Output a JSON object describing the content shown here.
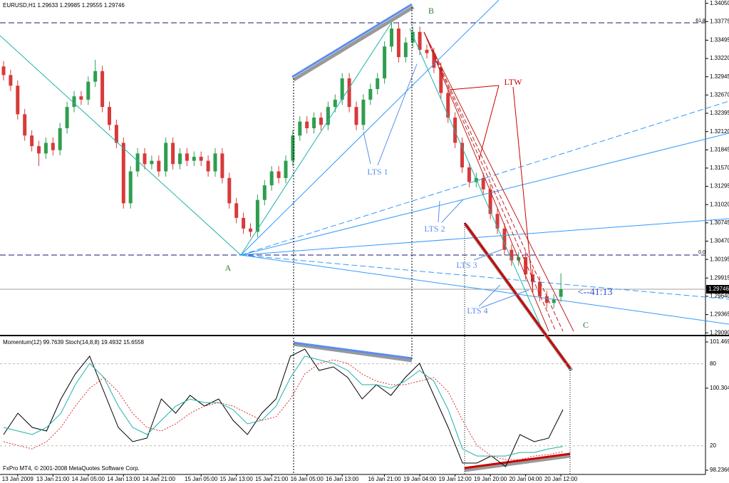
{
  "chart_data": [
    {
      "type": "candlestick",
      "title": "EURUSD,H1  1.29633 1.29985 1.29555 1.29746",
      "categories": [
        null,
        null,
        "13 Jan 2009",
        null,
        null,
        null,
        null,
        "13 Jan 21:00",
        null,
        null,
        null,
        null,
        "14 Jan 05:00",
        null,
        null,
        null,
        null,
        "14 Jan 13:00",
        null,
        null,
        null,
        null,
        "14 Jan 21:00",
        null,
        null,
        null,
        null,
        null,
        "15 Jan 05:00",
        null,
        null,
        null,
        null,
        "15 Jan 13:00",
        null,
        null,
        null,
        null,
        "15 Jan 21:00",
        null,
        null,
        null,
        null,
        "16 Jan 05:00",
        null,
        null,
        null,
        null,
        "16 Jan 13:00",
        null,
        null,
        null,
        null,
        null,
        "16 Jan 21:00",
        null,
        null,
        null,
        null,
        "19 Jan 04:00",
        null,
        null,
        null,
        null,
        "19 Jan 12:00",
        null,
        null,
        null,
        null,
        "19 Jan 20:00",
        null,
        null,
        null,
        null,
        "20 Jan 04:00",
        null,
        null,
        null,
        null,
        "20 Jan 12:00"
      ],
      "open": [
        1.331,
        1.3297,
        1.3281,
        1.3238,
        1.3206,
        1.319,
        1.3179,
        1.3195,
        1.3184,
        1.3217,
        1.3249,
        1.3265,
        1.326,
        1.3287,
        1.3303,
        1.3249,
        1.3222,
        1.3195,
        1.3104,
        1.3152,
        1.3179,
        1.3163,
        1.3168,
        1.3152,
        1.3195,
        1.3163,
        1.3179,
        1.3168,
        1.3174,
        1.3168,
        1.3152,
        1.3179,
        1.3142,
        1.3104,
        1.3082,
        1.3066,
        1.3061,
        1.3109,
        1.3131,
        1.3152,
        1.3142,
        1.3168,
        1.3206,
        1.3227,
        1.3217,
        1.3233,
        1.3222,
        1.3249,
        1.326,
        1.3292,
        1.3249,
        1.3222,
        1.326,
        1.3276,
        1.3292,
        1.334,
        1.3367,
        1.3324,
        1.3346,
        1.3362,
        1.3335,
        1.333,
        1.3308,
        1.327,
        1.3233,
        1.3195,
        1.3158,
        1.3136,
        1.3142,
        1.3125,
        1.3088,
        1.3066,
        1.3034,
        1.3018,
        1.3023,
        1.2997,
        1.2986,
        1.2964,
        1.2954,
        1.29633
      ],
      "high": [
        1.3318,
        1.3305,
        1.3289,
        1.3246,
        1.3214,
        1.3198,
        1.3203,
        1.3203,
        1.3225,
        1.3257,
        1.3273,
        1.3273,
        1.3295,
        1.332,
        1.3311,
        1.3257,
        1.323,
        1.3203,
        1.316,
        1.3187,
        1.3187,
        1.3176,
        1.3176,
        1.3203,
        1.3203,
        1.3187,
        1.3187,
        1.3182,
        1.3182,
        1.3176,
        1.3187,
        1.3187,
        1.315,
        1.3112,
        1.309,
        1.3074,
        1.3117,
        1.3139,
        1.316,
        1.316,
        1.3176,
        1.3214,
        1.3235,
        1.3235,
        1.3241,
        1.3241,
        1.3257,
        1.3268,
        1.33,
        1.33,
        1.3257,
        1.3268,
        1.3284,
        1.33,
        1.3348,
        1.3378,
        1.3375,
        1.3354,
        1.337,
        1.337,
        1.3343,
        1.3338,
        1.3316,
        1.3278,
        1.3241,
        1.3203,
        1.3166,
        1.315,
        1.315,
        1.3133,
        1.3096,
        1.3074,
        1.3042,
        1.3031,
        1.3031,
        1.3005,
        1.2994,
        1.2972,
        1.2967,
        1.29985
      ],
      "low": [
        1.3289,
        1.3273,
        1.323,
        1.3198,
        1.3182,
        1.316,
        1.3171,
        1.3176,
        1.3176,
        1.3209,
        1.3241,
        1.3252,
        1.3252,
        1.3279,
        1.3241,
        1.3214,
        1.3187,
        1.3096,
        1.3096,
        1.3144,
        1.3155,
        1.3155,
        1.3144,
        1.3144,
        1.3155,
        1.3155,
        1.316,
        1.316,
        1.316,
        1.3144,
        1.3144,
        1.3134,
        1.3096,
        1.3074,
        1.3058,
        1.3053,
        1.3053,
        1.3101,
        1.3123,
        1.3134,
        1.3134,
        1.316,
        1.3198,
        1.3209,
        1.3209,
        1.3214,
        1.3214,
        1.3241,
        1.3252,
        1.3241,
        1.3214,
        1.3214,
        1.3252,
        1.3268,
        1.3284,
        1.3332,
        1.3316,
        1.3316,
        1.3338,
        1.3327,
        1.3322,
        1.33,
        1.3262,
        1.3225,
        1.3187,
        1.315,
        1.3128,
        1.3128,
        1.3117,
        1.308,
        1.3058,
        1.3026,
        1.301,
        1.301,
        1.2989,
        1.2978,
        1.2956,
        1.2946,
        1.2946,
        1.29555
      ],
      "close": [
        1.3297,
        1.3281,
        1.3238,
        1.3206,
        1.319,
        1.3179,
        1.3195,
        1.3184,
        1.3217,
        1.3249,
        1.3265,
        1.326,
        1.3287,
        1.3303,
        1.3249,
        1.3222,
        1.3195,
        1.3104,
        1.3152,
        1.3179,
        1.3163,
        1.3168,
        1.3152,
        1.3195,
        1.3163,
        1.3179,
        1.3168,
        1.3174,
        1.3168,
        1.3152,
        1.3179,
        1.3142,
        1.3104,
        1.3082,
        1.3066,
        1.3061,
        1.3109,
        1.3131,
        1.3152,
        1.3142,
        1.3168,
        1.3206,
        1.3227,
        1.3217,
        1.3233,
        1.3222,
        1.3249,
        1.326,
        1.3292,
        1.3249,
        1.3222,
        1.326,
        1.3276,
        1.3292,
        1.334,
        1.3367,
        1.3324,
        1.3346,
        1.3362,
        1.3335,
        1.333,
        1.3308,
        1.327,
        1.3233,
        1.3195,
        1.3158,
        1.3136,
        1.3142,
        1.3125,
        1.3088,
        1.3066,
        1.3034,
        1.3018,
        1.3023,
        1.2997,
        1.2986,
        1.2964,
        1.2954,
        1.2959,
        1.29746
      ],
      "up_color": "#2e9e4f",
      "down_color": "#d83a3a",
      "last": {
        "value": 1.29746,
        "label": "1.29746"
      },
      "ylim": [
        1.2906,
        1.341
      ],
      "yticks": [
        {
          "value": 1.3405,
          "label": "1.34050"
        },
        1.33775,
        1.33495,
        {
          "value": 1.3322,
          "label": "1.33220"
        },
        1.32945,
        {
          "value": 1.3267,
          "label": "1.32670"
        },
        1.32395,
        {
          "value": 1.3212,
          "label": "1.32120"
        },
        1.31845,
        {
          "value": 1.3157,
          "label": "1.31570"
        },
        1.31295,
        {
          "value": 1.3102,
          "label": "1.31020"
        },
        1.30745,
        {
          "value": 1.3047,
          "label": "1.30470"
        },
        1.30195,
        1.29915,
        {
          "value": 1.2964,
          "label": "1.29640"
        },
        1.29365,
        {
          "value": 1.2909,
          "label": "1.29090"
        }
      ],
      "annotations": [
        "A",
        "B",
        "C",
        "LTW",
        "LTS 1",
        "LTS 2",
        "LTS 3",
        "LTS 4",
        "<--41:13",
        "61.8",
        "0.0"
      ]
    },
    {
      "type": "line",
      "title": "Momentum(12) 99.7639  Stoch(14,8,8) 19.4932 15.6558",
      "ylim": [
        -1,
        98.6
      ],
      "yticks": [
        80,
        20
      ],
      "y2lim": [
        98.13,
        101.559
      ],
      "y2ticks": [
        {
          "value": 101.469,
          "label": "101.4690"
        },
        100.3046,
        98.2366
      ],
      "series": [
        {
          "color": "#000000",
          "axis": "y2",
          "values": [
            99.135,
            99.674,
            99.315,
            99.225,
            100.033,
            100.661,
            101.11,
            100.212,
            99.315,
            98.956,
            99.045,
            100.033,
            99.674,
            100.123,
            99.853,
            100.033,
            99.494,
            99.135,
            99.674,
            100.033,
            101.11,
            101.289,
            100.751,
            100.841,
            100.571,
            100.033,
            100.392,
            100.123,
            100.571,
            100.93,
            100.123,
            99.315,
            98.417,
            98.417,
            98.596,
            98.327,
            99.135,
            98.956,
            99.045,
            99.7639
          ]
        },
        {
          "color": "#20b2aa",
          "values": [
            33.4,
            30.8,
            28.2,
            33.4,
            43.8,
            64.7,
            80.3,
            69.9,
            49.0,
            33.4,
            28.2,
            38.6,
            49.0,
            54.2,
            51.6,
            51.6,
            46.4,
            36.0,
            38.6,
            49.0,
            69.9,
            85.6,
            82.9,
            80.3,
            75.1,
            64.7,
            64.7,
            62.1,
            67.3,
            75.1,
            67.3,
            46.4,
            17.7,
            12.5,
            12.5,
            12.5,
            15.1,
            15.1,
            17.7,
            19.4932
          ]
        },
        {
          "color": "#e03030",
          "dotted": true,
          "values": [
            23.0,
            20.3,
            17.7,
            23.0,
            33.4,
            49.0,
            62.1,
            69.9,
            59.5,
            43.8,
            33.4,
            30.8,
            36.0,
            43.8,
            49.0,
            51.6,
            49.0,
            43.8,
            38.6,
            41.2,
            54.2,
            72.5,
            80.3,
            82.9,
            80.3,
            72.5,
            67.3,
            64.7,
            64.7,
            67.3,
            69.9,
            59.5,
            38.6,
            20.3,
            12.5,
            9.9,
            9.9,
            12.5,
            13.6,
            15.6558
          ]
        }
      ]
    }
  ],
  "footer": "FxPro MT4, © 2001-2008 MetaQuotes Software Corp."
}
